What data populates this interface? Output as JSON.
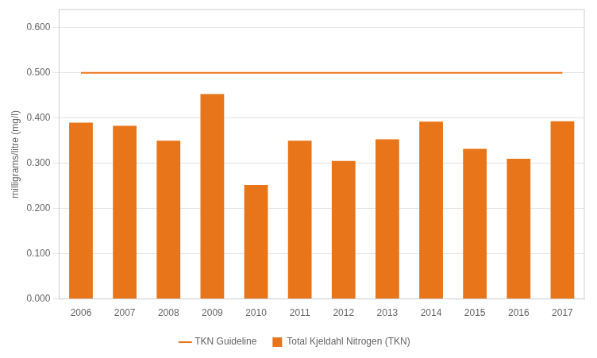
{
  "chart_data": {
    "type": "bar",
    "categories": [
      "2006",
      "2007",
      "2008",
      "2009",
      "2010",
      "2011",
      "2012",
      "2013",
      "2014",
      "2015",
      "2016",
      "2017"
    ],
    "series": [
      {
        "name": "Total Kjeldahl Nitrogen (TKN)",
        "type": "bar",
        "color": "#E8751A",
        "values": [
          0.39,
          0.383,
          0.35,
          0.453,
          0.252,
          0.35,
          0.305,
          0.353,
          0.392,
          0.332,
          0.31,
          0.393
        ]
      },
      {
        "name": "TKN Guideline",
        "type": "line",
        "color": "#E8751A",
        "values": [
          0.5,
          0.5,
          0.5,
          0.5,
          0.5,
          0.5,
          0.5,
          0.5,
          0.5,
          0.5,
          0.5,
          0.5
        ]
      }
    ],
    "y_label": "milligrams/litre (mg/l)",
    "ylim": [
      0.0,
      0.64
    ],
    "yticks": [
      {
        "value": 0.0,
        "label": "0.000"
      },
      {
        "value": 0.1,
        "label": "0.100"
      },
      {
        "value": 0.2,
        "label": "0.200"
      },
      {
        "value": 0.3,
        "label": "0.300"
      },
      {
        "value": 0.4,
        "label": "0.400"
      },
      {
        "value": 0.5,
        "label": "0.500"
      },
      {
        "value": 0.6,
        "label": "0.600"
      }
    ],
    "grid": true,
    "legend": "bottom"
  }
}
